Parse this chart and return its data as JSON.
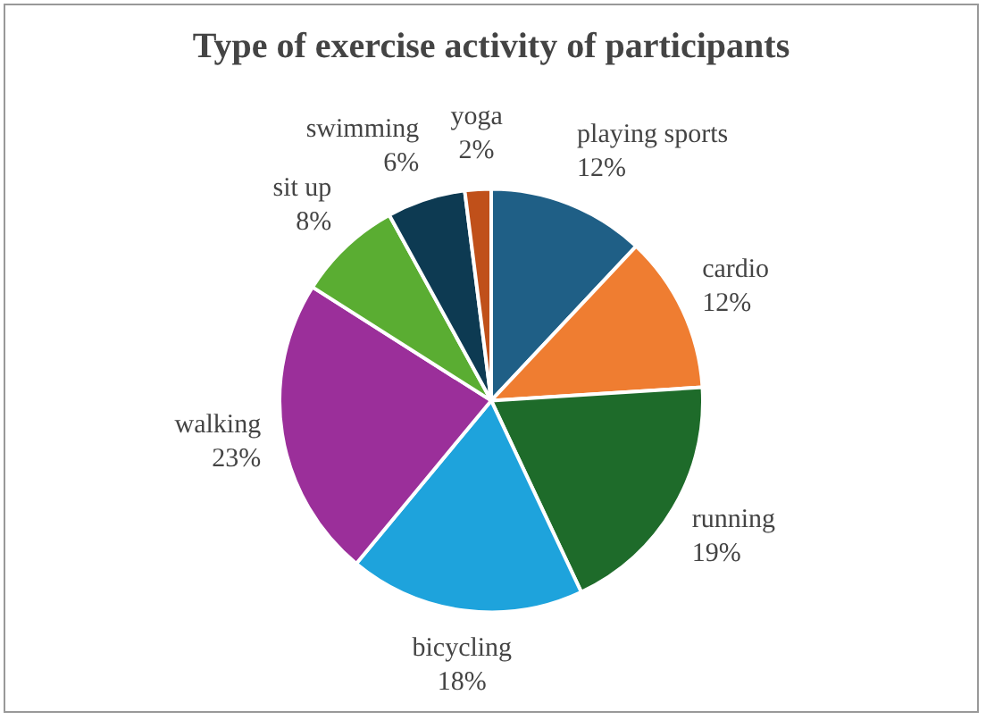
{
  "chart_data": {
    "type": "pie",
    "title": "Type of exercise activity of participants",
    "categories": [
      "playing sports",
      "cardio",
      "running",
      "bicycling",
      "walking",
      "sit up",
      "swimming",
      "yoga"
    ],
    "values": [
      12,
      12,
      19,
      18,
      23,
      8,
      6,
      2
    ],
    "value_labels": [
      "12%",
      "12%",
      "19%",
      "18%",
      "23%",
      "8%",
      "6%",
      "2%"
    ],
    "colors": [
      "#1f5f86",
      "#ef7d31",
      "#1e6b2a",
      "#1ea3dc",
      "#9b2f9a",
      "#5aad32",
      "#0d3a52",
      "#c0501a"
    ],
    "legend": false
  }
}
